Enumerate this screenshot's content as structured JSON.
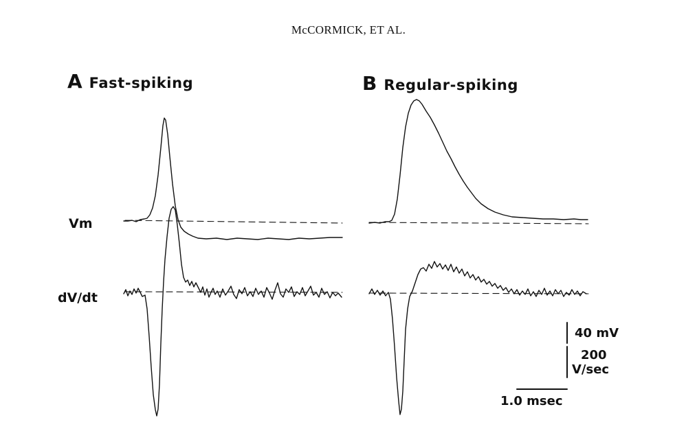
{
  "header": {
    "running_head": "McCORMICK, ET AL."
  },
  "panels": {
    "a": {
      "letter": "A",
      "name": "Fast-spiking"
    },
    "b": {
      "letter": "B",
      "name": "Regular-spiking"
    }
  },
  "traces": {
    "vm_label": "Vm",
    "dvdt_label": "dV/dt"
  },
  "scale_bar": {
    "voltage": "40 mV",
    "rate_value": "200",
    "rate_unit": "V/sec",
    "time": "1.0 msec"
  },
  "colors": {
    "ink": "#111111",
    "background": "#ffffff"
  }
}
